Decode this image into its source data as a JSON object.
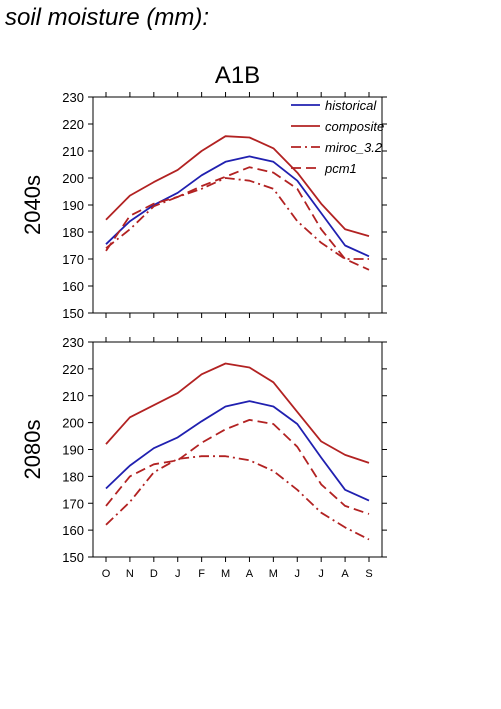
{
  "page_title": "soil moisture (mm):",
  "colors": {
    "historical": "#2020b0",
    "model": "#b22222",
    "axis": "#000000"
  },
  "chart_data": [
    {
      "type": "line",
      "title": "A1B",
      "row_label": "2040s",
      "categories": [
        "O",
        "N",
        "D",
        "J",
        "F",
        "M",
        "A",
        "M",
        "J",
        "J",
        "A",
        "S"
      ],
      "ylim": [
        150,
        230
      ],
      "yticks": [
        150,
        160,
        170,
        180,
        190,
        200,
        210,
        220,
        230
      ],
      "legend_position": "top-right",
      "series": [
        {
          "name": "historical",
          "style": "solid",
          "color": "#2020b0",
          "values": [
            175.5,
            184,
            190,
            194.5,
            201,
            206,
            208,
            206,
            199,
            187,
            175,
            171
          ]
        },
        {
          "name": "composite",
          "style": "solid",
          "color": "#b22222",
          "values": [
            184.5,
            193.5,
            198.5,
            203,
            210,
            215.5,
            215,
            211,
            202,
            190.5,
            181,
            178.5
          ]
        },
        {
          "name": "miroc_3.2",
          "style": "dashdot",
          "color": "#b22222",
          "values": [
            174,
            181,
            189.5,
            193,
            196,
            200,
            199,
            196,
            184,
            176,
            170,
            170
          ]
        },
        {
          "name": "pcm1",
          "style": "dashed",
          "color": "#b22222",
          "values": [
            173,
            186,
            190.5,
            193,
            197,
            200.5,
            204,
            202,
            196,
            181,
            170,
            166
          ]
        }
      ]
    },
    {
      "type": "line",
      "title": "",
      "row_label": "2080s",
      "categories": [
        "O",
        "N",
        "D",
        "J",
        "F",
        "M",
        "A",
        "M",
        "J",
        "J",
        "A",
        "S"
      ],
      "ylim": [
        150,
        230
      ],
      "yticks": [
        150,
        160,
        170,
        180,
        190,
        200,
        210,
        220,
        230
      ],
      "series": [
        {
          "name": "historical",
          "style": "solid",
          "color": "#2020b0",
          "values": [
            175.5,
            184,
            190.5,
            194.5,
            200.5,
            206,
            208,
            206,
            199.5,
            187,
            175,
            171
          ]
        },
        {
          "name": "composite",
          "style": "solid",
          "color": "#b22222",
          "values": [
            192,
            202,
            206.5,
            211,
            218,
            222,
            220.5,
            215,
            204,
            193,
            188,
            185
          ]
        },
        {
          "name": "miroc_3.2",
          "style": "dashdot",
          "color": "#b22222",
          "values": [
            162,
            170.5,
            181.5,
            186.5,
            187.5,
            187.5,
            186,
            182,
            175,
            166.5,
            161,
            156.5
          ]
        },
        {
          "name": "pcm1",
          "style": "dashed",
          "color": "#b22222",
          "values": [
            169,
            180,
            184.5,
            186,
            192.5,
            197.5,
            201,
            199.5,
            191,
            177,
            169,
            166
          ]
        }
      ]
    }
  ]
}
